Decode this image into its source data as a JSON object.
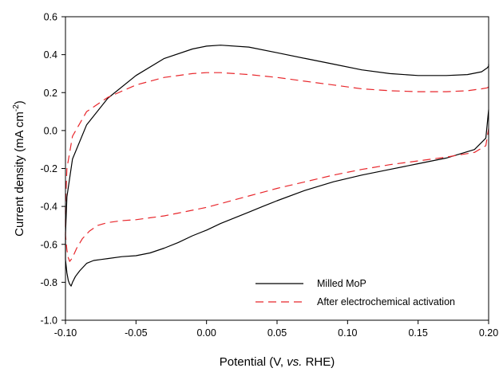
{
  "chart_data": {
    "type": "line",
    "xlabel_parts": [
      "Potential (V, ",
      "vs.",
      " RHE)"
    ],
    "ylabel_parts": [
      "Current density (mA cm",
      "-2",
      ")"
    ],
    "xlim": [
      -0.1,
      0.2
    ],
    "ylim": [
      -1.0,
      0.6
    ],
    "x_ticks": [
      "-0.10",
      "-0.05",
      "0.00",
      "0.05",
      "0.10",
      "0.15",
      "0.20"
    ],
    "y_ticks": [
      "-1.0",
      "-0.8",
      "-0.6",
      "-0.4",
      "-0.2",
      "0.0",
      "0.2",
      "0.4",
      "0.6"
    ],
    "grid": false,
    "legend_position": "bottom-right",
    "series": [
      {
        "name": "Milled MoP",
        "color": "#000000",
        "dash": "solid",
        "x": [
          0.2,
          0.2,
          0.199,
          0.195,
          0.185,
          0.17,
          0.15,
          0.13,
          0.11,
          0.09,
          0.07,
          0.05,
          0.03,
          0.01,
          0.0,
          -0.01,
          -0.03,
          -0.05,
          -0.07,
          -0.085,
          -0.095,
          -0.099,
          -0.1,
          -0.1,
          -0.099,
          -0.098,
          -0.097,
          -0.096,
          -0.095,
          -0.093,
          -0.09,
          -0.085,
          -0.08,
          -0.07,
          -0.06,
          -0.05,
          -0.04,
          -0.03,
          -0.02,
          -0.01,
          0.0,
          0.01,
          0.02,
          0.03,
          0.04,
          0.05,
          0.07,
          0.09,
          0.11,
          0.13,
          0.15,
          0.17,
          0.19,
          0.198,
          0.2
        ],
        "y": [
          0.35,
          0.34,
          0.33,
          0.31,
          0.295,
          0.29,
          0.29,
          0.3,
          0.32,
          0.35,
          0.38,
          0.41,
          0.44,
          0.45,
          0.445,
          0.43,
          0.38,
          0.29,
          0.17,
          0.03,
          -0.15,
          -0.35,
          -0.55,
          -0.68,
          -0.75,
          -0.79,
          -0.81,
          -0.82,
          -0.8,
          -0.77,
          -0.74,
          -0.7,
          -0.685,
          -0.675,
          -0.665,
          -0.66,
          -0.645,
          -0.62,
          -0.59,
          -0.555,
          -0.525,
          -0.49,
          -0.46,
          -0.43,
          -0.4,
          -0.37,
          -0.315,
          -0.27,
          -0.235,
          -0.205,
          -0.175,
          -0.145,
          -0.1,
          -0.04,
          0.11
        ]
      },
      {
        "name": "After electrochemical activation",
        "color": "#e8262b",
        "dash": "dashed",
        "x": [
          0.2,
          0.199,
          0.195,
          0.185,
          0.17,
          0.15,
          0.13,
          0.11,
          0.09,
          0.07,
          0.05,
          0.03,
          0.01,
          0.0,
          -0.01,
          -0.03,
          -0.05,
          -0.07,
          -0.085,
          -0.095,
          -0.099,
          -0.1,
          -0.1,
          -0.099,
          -0.098,
          -0.097,
          -0.095,
          -0.092,
          -0.088,
          -0.083,
          -0.077,
          -0.07,
          -0.06,
          -0.05,
          -0.04,
          -0.03,
          -0.02,
          -0.01,
          0.0,
          0.01,
          0.02,
          0.03,
          0.04,
          0.05,
          0.07,
          0.09,
          0.11,
          0.13,
          0.15,
          0.17,
          0.19,
          0.198,
          0.2
        ],
        "y": [
          0.23,
          0.225,
          0.22,
          0.21,
          0.205,
          0.205,
          0.21,
          0.22,
          0.24,
          0.26,
          0.28,
          0.295,
          0.305,
          0.305,
          0.3,
          0.28,
          0.24,
          0.175,
          0.1,
          -0.03,
          -0.2,
          -0.4,
          -0.55,
          -0.63,
          -0.67,
          -0.69,
          -0.67,
          -0.62,
          -0.57,
          -0.53,
          -0.5,
          -0.485,
          -0.475,
          -0.47,
          -0.46,
          -0.45,
          -0.435,
          -0.42,
          -0.405,
          -0.385,
          -0.365,
          -0.345,
          -0.325,
          -0.305,
          -0.27,
          -0.235,
          -0.205,
          -0.18,
          -0.16,
          -0.14,
          -0.115,
          -0.08,
          0.01
        ]
      }
    ]
  }
}
